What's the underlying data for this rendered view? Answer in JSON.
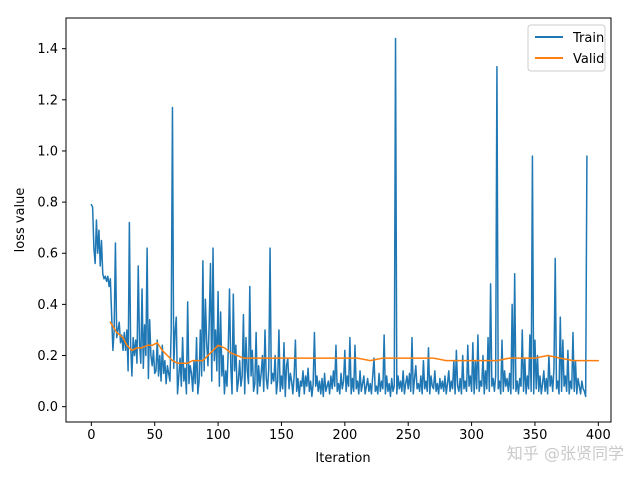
{
  "chart_data": {
    "type": "line",
    "xlabel": "Iteration",
    "ylabel": "loss value",
    "xlim": [
      -20,
      410
    ],
    "ylim": [
      -0.06,
      1.52
    ],
    "xticks": [
      0,
      50,
      100,
      150,
      200,
      250,
      300,
      350,
      400
    ],
    "yticks": [
      0.0,
      0.2,
      0.4,
      0.6,
      0.8,
      1.0,
      1.2,
      1.4
    ],
    "grid": false,
    "legend_position": "upper right",
    "colors": {
      "train": "#1f77b4",
      "valid": "#ff7f0e"
    },
    "series": [
      {
        "name": "Train",
        "x_start": 0,
        "x_step": 1,
        "values": [
          0.79,
          0.78,
          0.62,
          0.56,
          0.73,
          0.6,
          0.69,
          0.55,
          0.65,
          0.52,
          0.5,
          0.51,
          0.49,
          0.51,
          0.47,
          0.5,
          0.36,
          0.22,
          0.3,
          0.64,
          0.27,
          0.3,
          0.33,
          0.25,
          0.28,
          0.22,
          0.29,
          0.22,
          0.3,
          0.14,
          0.72,
          0.24,
          0.12,
          0.27,
          0.2,
          0.26,
          0.17,
          0.55,
          0.25,
          0.17,
          0.46,
          0.15,
          0.32,
          0.2,
          0.62,
          0.11,
          0.34,
          0.2,
          0.16,
          0.22,
          0.13,
          0.14,
          0.26,
          0.12,
          0.2,
          0.1,
          0.24,
          0.13,
          0.18,
          0.09,
          0.16,
          0.13,
          0.1,
          0.3,
          1.17,
          0.15,
          0.29,
          0.35,
          0.05,
          0.12,
          0.19,
          0.08,
          0.27,
          0.1,
          0.15,
          0.05,
          0.41,
          0.09,
          0.16,
          0.13,
          0.06,
          0.18,
          0.09,
          0.27,
          0.05,
          0.1,
          0.3,
          0.12,
          0.57,
          0.14,
          0.42,
          0.25,
          0.16,
          0.33,
          0.56,
          0.1,
          0.62,
          0.18,
          0.3,
          0.14,
          0.45,
          0.08,
          0.37,
          0.12,
          0.2,
          0.05,
          0.14,
          0.08,
          0.22,
          0.46,
          0.16,
          0.05,
          0.44,
          0.14,
          0.24,
          0.06,
          0.1,
          0.18,
          0.08,
          0.12,
          0.36,
          0.05,
          0.27,
          0.14,
          0.09,
          0.47,
          0.12,
          0.22,
          0.06,
          0.09,
          0.29,
          0.05,
          0.16,
          0.08,
          0.13,
          0.2,
          0.06,
          0.3,
          0.11,
          0.07,
          0.15,
          0.62,
          0.09,
          0.13,
          0.1,
          0.2,
          0.05,
          0.1,
          0.3,
          0.06,
          0.12,
          0.07,
          0.25,
          0.04,
          0.16,
          0.19,
          0.07,
          0.13,
          0.1,
          0.05,
          0.12,
          0.26,
          0.06,
          0.11,
          0.04,
          0.1,
          0.08,
          0.14,
          0.05,
          0.12,
          0.08,
          0.15,
          0.06,
          0.1,
          0.04,
          0.09,
          0.29,
          0.08,
          0.12,
          0.06,
          0.1,
          0.05,
          0.11,
          0.04,
          0.13,
          0.06,
          0.08,
          0.1,
          0.05,
          0.12,
          0.07,
          0.14,
          0.08,
          0.24,
          0.06,
          0.09,
          0.05,
          0.13,
          0.07,
          0.1,
          0.22,
          0.06,
          0.12,
          0.08,
          0.27,
          0.05,
          0.11,
          0.06,
          0.24,
          0.07,
          0.1,
          0.05,
          0.14,
          0.06,
          0.09,
          0.12,
          0.05,
          0.08,
          0.11,
          0.06,
          0.09,
          0.05,
          0.12,
          0.19,
          0.06,
          0.08,
          0.05,
          0.13,
          0.06,
          0.1,
          0.07,
          0.28,
          0.05,
          0.12,
          0.06,
          0.09,
          0.04,
          0.11,
          0.06,
          0.08,
          1.44,
          0.05,
          0.12,
          0.07,
          0.1,
          0.06,
          0.14,
          0.05,
          0.09,
          0.12,
          0.07,
          0.13,
          0.06,
          0.27,
          0.05,
          0.11,
          0.16,
          0.07,
          0.09,
          0.06,
          0.12,
          0.05,
          0.18,
          0.07,
          0.1,
          0.06,
          0.23,
          0.05,
          0.12,
          0.08,
          0.07,
          0.14,
          0.06,
          0.09,
          0.05,
          0.11,
          0.07,
          0.1,
          0.06,
          0.12,
          0.05,
          0.09,
          0.14,
          0.06,
          0.1,
          0.07,
          0.18,
          0.05,
          0.22,
          0.08,
          0.06,
          0.11,
          0.05,
          0.2,
          0.07,
          0.1,
          0.06,
          0.24,
          0.08,
          0.12,
          0.06,
          0.25,
          0.05,
          0.18,
          0.07,
          0.28,
          0.06,
          0.1,
          0.08,
          0.2,
          0.05,
          0.14,
          0.07,
          0.27,
          0.06,
          0.48,
          0.08,
          0.11,
          0.06,
          0.12,
          1.33,
          0.07,
          0.1,
          0.05,
          0.26,
          0.06,
          0.14,
          0.08,
          0.11,
          0.06,
          0.13,
          0.05,
          0.4,
          0.07,
          0.52,
          0.06,
          0.1,
          0.05,
          0.11,
          0.08,
          0.3,
          0.06,
          0.19,
          0.05,
          0.12,
          0.07,
          0.28,
          0.06,
          0.98,
          0.05,
          0.26,
          0.07,
          0.2,
          0.06,
          0.12,
          0.05,
          0.09,
          0.14,
          0.06,
          0.11,
          0.05,
          0.2,
          0.08,
          0.12,
          0.06,
          0.15,
          0.58,
          0.07,
          0.1,
          0.05,
          0.35,
          0.06,
          0.26,
          0.08,
          0.12,
          0.06,
          0.22,
          0.05,
          0.1,
          0.07,
          0.29,
          0.06,
          0.18,
          0.05,
          0.11,
          0.08,
          0.05,
          0.1,
          0.07,
          0.06,
          0.04,
          0.98
        ]
      },
      {
        "name": "Valid",
        "x": [
          15,
          20,
          25,
          28,
          32,
          36,
          40,
          44,
          48,
          52,
          56,
          60,
          64,
          68,
          72,
          76,
          80,
          84,
          88,
          92,
          96,
          100,
          105,
          110,
          120,
          130,
          140,
          150,
          160,
          170,
          180,
          190,
          200,
          210,
          220,
          230,
          240,
          250,
          260,
          270,
          280,
          290,
          300,
          310,
          320,
          330,
          340,
          350,
          360,
          370,
          380,
          390,
          400
        ],
        "values": [
          0.33,
          0.29,
          0.27,
          0.24,
          0.22,
          0.23,
          0.23,
          0.24,
          0.24,
          0.25,
          0.22,
          0.2,
          0.18,
          0.17,
          0.17,
          0.17,
          0.18,
          0.18,
          0.18,
          0.2,
          0.22,
          0.24,
          0.23,
          0.21,
          0.19,
          0.19,
          0.19,
          0.19,
          0.19,
          0.19,
          0.19,
          0.19,
          0.19,
          0.19,
          0.18,
          0.19,
          0.19,
          0.19,
          0.19,
          0.19,
          0.18,
          0.18,
          0.18,
          0.18,
          0.18,
          0.19,
          0.19,
          0.19,
          0.2,
          0.19,
          0.18,
          0.18,
          0.18
        ]
      }
    ]
  },
  "watermark": "知乎 @张贤同学"
}
